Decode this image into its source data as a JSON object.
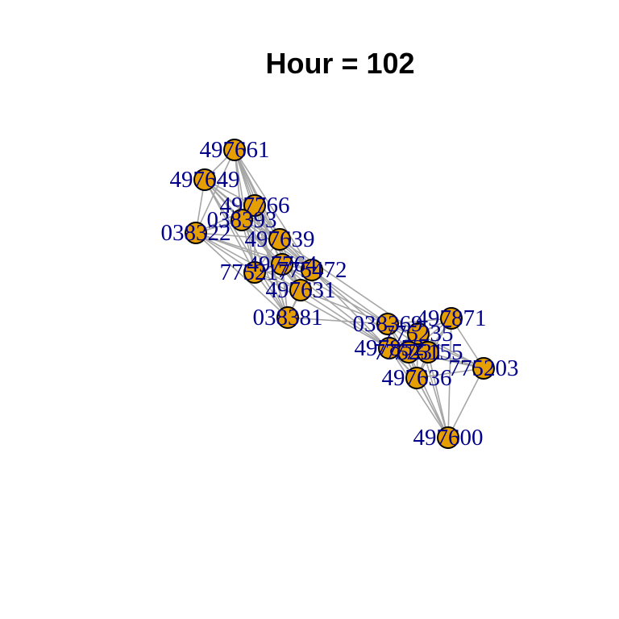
{
  "title": "Hour = 102",
  "colors": {
    "node_fill": "#e69f00",
    "node_stroke": "#000000",
    "edge": "#a6a6a6",
    "label": "#00008b"
  },
  "network": {
    "nodes": [
      {
        "id": "497661"
      },
      {
        "id": "497649"
      },
      {
        "id": "497766"
      },
      {
        "id": "038393"
      },
      {
        "id": "038322"
      },
      {
        "id": "497639"
      },
      {
        "id": "497764"
      },
      {
        "id": "775472"
      },
      {
        "id": "775217"
      },
      {
        "id": "497631"
      },
      {
        "id": "038381"
      },
      {
        "id": "038369"
      },
      {
        "id": "497871"
      },
      {
        "id": "775235"
      },
      {
        "id": "497852"
      },
      {
        "id": "775231"
      },
      {
        "id": "775155"
      },
      {
        "id": "775203"
      },
      {
        "id": "497636"
      },
      {
        "id": "497600"
      }
    ]
  }
}
